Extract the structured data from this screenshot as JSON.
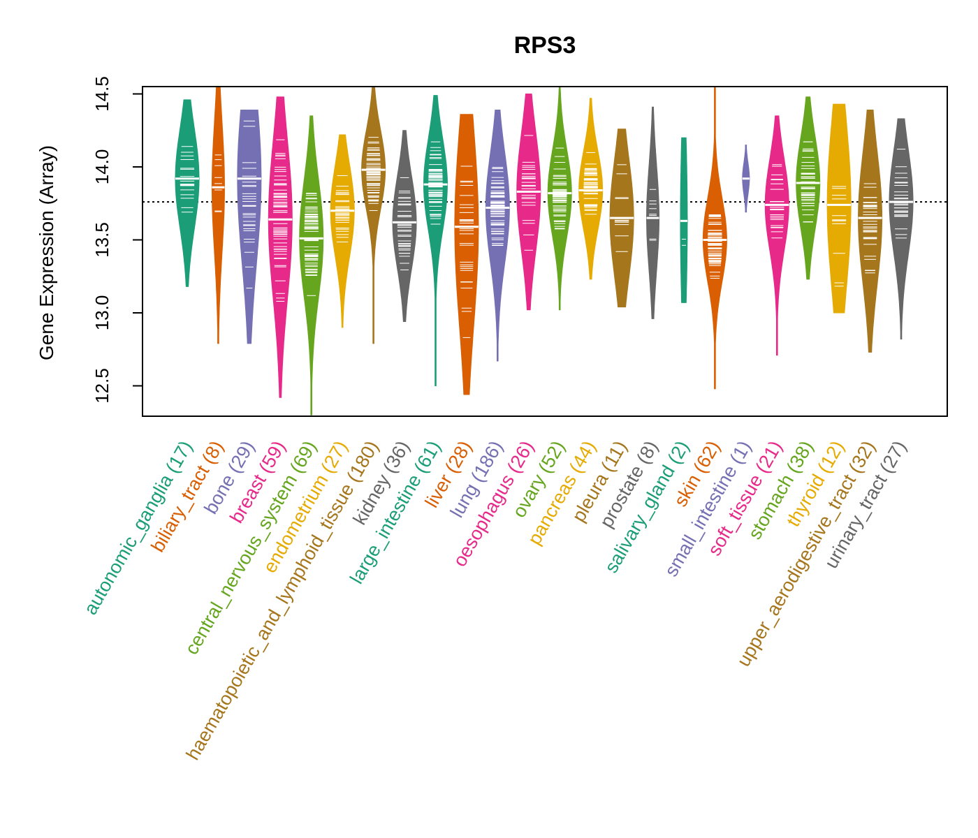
{
  "chart_data": {
    "type": "violin",
    "title": "RPS3",
    "xlabel": "",
    "ylabel": "Gene Expression (Array)",
    "ylim": [
      12.3,
      14.55
    ],
    "yticks": [
      12.5,
      13.0,
      13.5,
      14.0,
      14.5
    ],
    "ytick_labels": [
      "12.5",
      "13.0",
      "13.5",
      "14.0",
      "14.5"
    ],
    "reference_line": 13.76,
    "grid": false,
    "legend": "none",
    "palette": [
      "#1b9e77",
      "#d95f02",
      "#7570b3",
      "#e7298a",
      "#66a61e",
      "#e6ab02",
      "#a6761d",
      "#666666"
    ],
    "categories": [
      {
        "name": "autonomic_ganglia",
        "n": 17,
        "label": "autonomic_ganglia (17)",
        "color": "#1b9e77",
        "min": 13.18,
        "max": 14.46,
        "median": 13.92,
        "q1": 13.7,
        "q3": 14.08
      },
      {
        "name": "biliary_tract",
        "n": 8,
        "label": "biliary_tract (8)",
        "color": "#d95f02",
        "min": 12.79,
        "max": 14.55,
        "median": 13.86,
        "q1": 13.6,
        "q3": 14.1
      },
      {
        "name": "bone",
        "n": 29,
        "label": "bone (29)",
        "color": "#7570b3",
        "min": 12.79,
        "max": 14.39,
        "median": 13.92,
        "q1": 13.4,
        "q3": 14.05
      },
      {
        "name": "breast",
        "n": 59,
        "label": "breast (59)",
        "color": "#e7298a",
        "min": 12.42,
        "max": 14.48,
        "median": 13.64,
        "q1": 13.35,
        "q3": 13.95
      },
      {
        "name": "central_nervous_system",
        "n": 69,
        "label": "central_nervous_system (69)",
        "color": "#66a61e",
        "min": 12.3,
        "max": 14.35,
        "median": 13.51,
        "q1": 13.3,
        "q3": 13.75
      },
      {
        "name": "endometrium",
        "n": 27,
        "label": "endometrium (27)",
        "color": "#e6ab02",
        "min": 12.9,
        "max": 14.22,
        "median": 13.7,
        "q1": 13.5,
        "q3": 13.85
      },
      {
        "name": "haematopoietic_and_lymphoid_tissue",
        "n": 180,
        "label": "haematopoietic_and_lymphoid_tissue (180)",
        "color": "#a6761d",
        "min": 12.79,
        "max": 14.55,
        "median": 13.98,
        "q1": 13.8,
        "q3": 14.1
      },
      {
        "name": "kidney",
        "n": 36,
        "label": "kidney (36)",
        "color": "#666666",
        "min": 12.94,
        "max": 14.25,
        "median": 13.62,
        "q1": 13.45,
        "q3": 13.8
      },
      {
        "name": "large_intestine",
        "n": 61,
        "label": "large_intestine (61)",
        "color": "#1b9e77",
        "min": 12.5,
        "max": 14.49,
        "median": 13.88,
        "q1": 13.7,
        "q3": 14.05
      },
      {
        "name": "liver",
        "n": 28,
        "label": "liver (28)",
        "color": "#d95f02",
        "min": 12.44,
        "max": 14.36,
        "median": 13.59,
        "q1": 13.1,
        "q3": 13.85
      },
      {
        "name": "lung",
        "n": 186,
        "label": "lung (186)",
        "color": "#7570b3",
        "min": 12.67,
        "max": 14.39,
        "median": 13.72,
        "q1": 13.5,
        "q3": 13.92
      },
      {
        "name": "oesophagus",
        "n": 26,
        "label": "oesophagus (26)",
        "color": "#e7298a",
        "min": 13.02,
        "max": 14.5,
        "median": 13.83,
        "q1": 13.6,
        "q3": 14.05
      },
      {
        "name": "ovary",
        "n": 52,
        "label": "ovary (52)",
        "color": "#66a61e",
        "min": 13.02,
        "max": 14.55,
        "median": 13.82,
        "q1": 13.65,
        "q3": 13.98
      },
      {
        "name": "pancreas",
        "n": 44,
        "label": "pancreas (44)",
        "color": "#e6ab02",
        "min": 13.23,
        "max": 14.47,
        "median": 13.84,
        "q1": 13.68,
        "q3": 13.98
      },
      {
        "name": "pleura",
        "n": 11,
        "label": "pleura (11)",
        "color": "#a6761d",
        "min": 13.04,
        "max": 14.26,
        "median": 13.65,
        "q1": 13.4,
        "q3": 13.85
      },
      {
        "name": "prostate",
        "n": 8,
        "label": "prostate (8)",
        "color": "#666666",
        "min": 12.96,
        "max": 14.41,
        "median": 13.65,
        "q1": 13.45,
        "q3": 13.85
      },
      {
        "name": "salivary_gland",
        "n": 2,
        "label": "salivary_gland (2)",
        "color": "#1b9e77",
        "min": 13.07,
        "max": 14.2,
        "median": 13.63,
        "q1": 13.28,
        "q3": 13.97
      },
      {
        "name": "skin",
        "n": 62,
        "label": "skin (62)",
        "color": "#d95f02",
        "min": 12.48,
        "max": 14.55,
        "median": 13.5,
        "q1": 13.3,
        "q3": 13.62
      },
      {
        "name": "small_intestine",
        "n": 1,
        "label": "small_intestine (1)",
        "color": "#7570b3",
        "min": 13.69,
        "max": 14.15,
        "median": 13.92,
        "q1": 13.92,
        "q3": 13.92
      },
      {
        "name": "soft_tissue",
        "n": 21,
        "label": "soft_tissue (21)",
        "color": "#e7298a",
        "min": 12.71,
        "max": 14.35,
        "median": 13.74,
        "q1": 13.6,
        "q3": 13.95
      },
      {
        "name": "stomach",
        "n": 38,
        "label": "stomach (38)",
        "color": "#66a61e",
        "min": 13.23,
        "max": 14.48,
        "median": 13.89,
        "q1": 13.7,
        "q3": 14.05
      },
      {
        "name": "thyroid",
        "n": 12,
        "label": "thyroid (12)",
        "color": "#e6ab02",
        "min": 13.0,
        "max": 14.43,
        "median": 13.74,
        "q1": 13.35,
        "q3": 14.0
      },
      {
        "name": "upper_aerodigestive_tract",
        "n": 32,
        "label": "upper_aerodigestive_tract (32)",
        "color": "#a6761d",
        "min": 12.73,
        "max": 14.39,
        "median": 13.65,
        "q1": 13.4,
        "q3": 13.9
      },
      {
        "name": "urinary_tract",
        "n": 27,
        "label": "urinary_tract (27)",
        "color": "#666666",
        "min": 12.82,
        "max": 14.33,
        "median": 13.76,
        "q1": 13.55,
        "q3": 13.95
      }
    ]
  }
}
